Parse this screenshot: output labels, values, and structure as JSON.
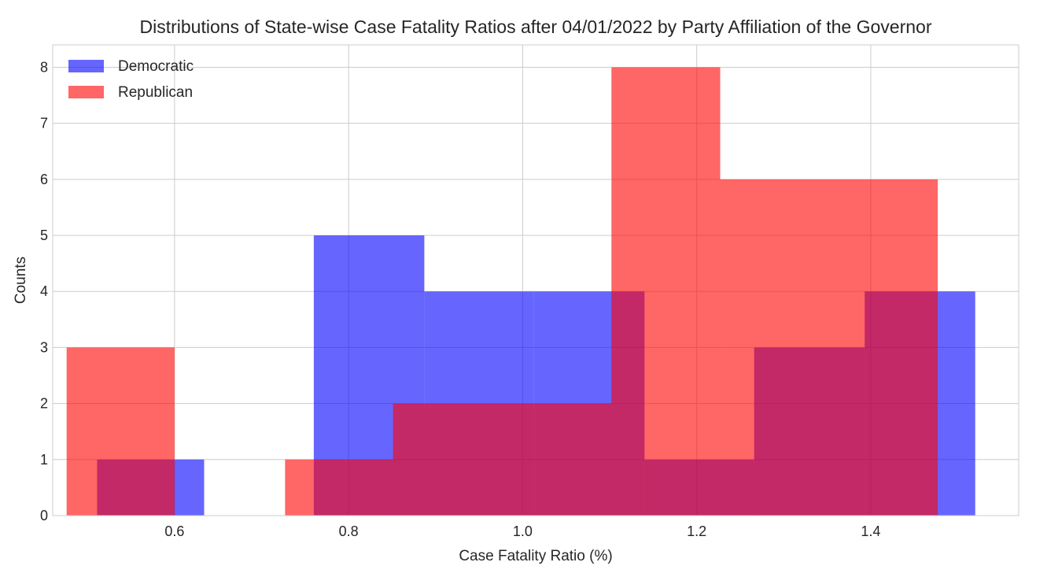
{
  "chart_data": {
    "type": "bar",
    "subtype": "histogram",
    "title": "Distributions of State-wise Case Fatality Ratios after 04/01/2022 by Party Affiliation of the Governor",
    "xlabel": "Case Fatality Ratio (%)",
    "ylabel": "Counts",
    "xlim": [
      0.46,
      1.57
    ],
    "ylim": [
      0,
      8.4
    ],
    "xticks": [
      "0.6",
      "0.8",
      "1.0",
      "1.2",
      "1.4"
    ],
    "yticks": [
      "0",
      "1",
      "2",
      "3",
      "4",
      "5",
      "6",
      "7",
      "8"
    ],
    "grid": true,
    "legend_position": "top-left",
    "series": [
      {
        "name": "Democratic",
        "color": "#0000ff",
        "bins": [
          {
            "x0": 0.511,
            "x1": 0.6,
            "value": 1
          },
          {
            "x0": 0.6,
            "x1": 0.634,
            "value": 1
          },
          {
            "x0": 0.634,
            "x1": 0.76,
            "value": 0
          },
          {
            "x0": 0.76,
            "x1": 0.887,
            "value": 5
          },
          {
            "x0": 0.887,
            "x1": 1.013,
            "value": 4
          },
          {
            "x0": 1.013,
            "x1": 1.14,
            "value": 4
          },
          {
            "x0": 1.14,
            "x1": 1.266,
            "value": 1
          },
          {
            "x0": 1.266,
            "x1": 1.393,
            "value": 3
          },
          {
            "x0": 1.393,
            "x1": 1.52,
            "value": 4
          }
        ]
      },
      {
        "name": "Republican",
        "color": "#ff0000",
        "bins": [
          {
            "x0": 0.476,
            "x1": 0.6,
            "value": 3
          },
          {
            "x0": 0.6,
            "x1": 0.727,
            "value": 0
          },
          {
            "x0": 0.727,
            "x1": 0.851,
            "value": 1
          },
          {
            "x0": 0.851,
            "x1": 1.102,
            "value": 2
          },
          {
            "x0": 1.102,
            "x1": 1.227,
            "value": 8
          },
          {
            "x0": 1.227,
            "x1": 1.477,
            "value": 6
          }
        ]
      }
    ]
  }
}
